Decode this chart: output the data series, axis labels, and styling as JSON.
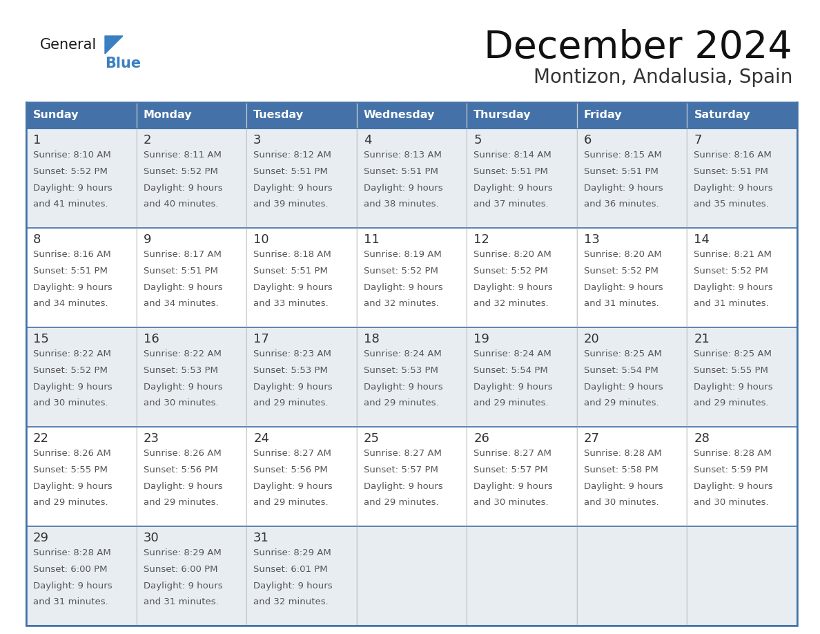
{
  "title": "December 2024",
  "subtitle": "Montizon, Andalusia, Spain",
  "header_color": "#4472a8",
  "header_text_color": "#ffffff",
  "day_names": [
    "Sunday",
    "Monday",
    "Tuesday",
    "Wednesday",
    "Thursday",
    "Friday",
    "Saturday"
  ],
  "cell_bg_white": "#ffffff",
  "cell_bg_gray": "#e8edf2",
  "border_color": "#4472a8",
  "day_num_color": "#333333",
  "text_color": "#555555",
  "days": [
    {
      "day": 1,
      "col": 0,
      "row": 0,
      "sunrise": "8:10 AM",
      "sunset": "5:52 PM",
      "daylight_line1": "9 hours",
      "daylight_line2": "and 41 minutes."
    },
    {
      "day": 2,
      "col": 1,
      "row": 0,
      "sunrise": "8:11 AM",
      "sunset": "5:52 PM",
      "daylight_line1": "9 hours",
      "daylight_line2": "and 40 minutes."
    },
    {
      "day": 3,
      "col": 2,
      "row": 0,
      "sunrise": "8:12 AM",
      "sunset": "5:51 PM",
      "daylight_line1": "9 hours",
      "daylight_line2": "and 39 minutes."
    },
    {
      "day": 4,
      "col": 3,
      "row": 0,
      "sunrise": "8:13 AM",
      "sunset": "5:51 PM",
      "daylight_line1": "9 hours",
      "daylight_line2": "and 38 minutes."
    },
    {
      "day": 5,
      "col": 4,
      "row": 0,
      "sunrise": "8:14 AM",
      "sunset": "5:51 PM",
      "daylight_line1": "9 hours",
      "daylight_line2": "and 37 minutes."
    },
    {
      "day": 6,
      "col": 5,
      "row": 0,
      "sunrise": "8:15 AM",
      "sunset": "5:51 PM",
      "daylight_line1": "9 hours",
      "daylight_line2": "and 36 minutes."
    },
    {
      "day": 7,
      "col": 6,
      "row": 0,
      "sunrise": "8:16 AM",
      "sunset": "5:51 PM",
      "daylight_line1": "9 hours",
      "daylight_line2": "and 35 minutes."
    },
    {
      "day": 8,
      "col": 0,
      "row": 1,
      "sunrise": "8:16 AM",
      "sunset": "5:51 PM",
      "daylight_line1": "9 hours",
      "daylight_line2": "and 34 minutes."
    },
    {
      "day": 9,
      "col": 1,
      "row": 1,
      "sunrise": "8:17 AM",
      "sunset": "5:51 PM",
      "daylight_line1": "9 hours",
      "daylight_line2": "and 34 minutes."
    },
    {
      "day": 10,
      "col": 2,
      "row": 1,
      "sunrise": "8:18 AM",
      "sunset": "5:51 PM",
      "daylight_line1": "9 hours",
      "daylight_line2": "and 33 minutes."
    },
    {
      "day": 11,
      "col": 3,
      "row": 1,
      "sunrise": "8:19 AM",
      "sunset": "5:52 PM",
      "daylight_line1": "9 hours",
      "daylight_line2": "and 32 minutes."
    },
    {
      "day": 12,
      "col": 4,
      "row": 1,
      "sunrise": "8:20 AM",
      "sunset": "5:52 PM",
      "daylight_line1": "9 hours",
      "daylight_line2": "and 32 minutes."
    },
    {
      "day": 13,
      "col": 5,
      "row": 1,
      "sunrise": "8:20 AM",
      "sunset": "5:52 PM",
      "daylight_line1": "9 hours",
      "daylight_line2": "and 31 minutes."
    },
    {
      "day": 14,
      "col": 6,
      "row": 1,
      "sunrise": "8:21 AM",
      "sunset": "5:52 PM",
      "daylight_line1": "9 hours",
      "daylight_line2": "and 31 minutes."
    },
    {
      "day": 15,
      "col": 0,
      "row": 2,
      "sunrise": "8:22 AM",
      "sunset": "5:52 PM",
      "daylight_line1": "9 hours",
      "daylight_line2": "and 30 minutes."
    },
    {
      "day": 16,
      "col": 1,
      "row": 2,
      "sunrise": "8:22 AM",
      "sunset": "5:53 PM",
      "daylight_line1": "9 hours",
      "daylight_line2": "and 30 minutes."
    },
    {
      "day": 17,
      "col": 2,
      "row": 2,
      "sunrise": "8:23 AM",
      "sunset": "5:53 PM",
      "daylight_line1": "9 hours",
      "daylight_line2": "and 29 minutes."
    },
    {
      "day": 18,
      "col": 3,
      "row": 2,
      "sunrise": "8:24 AM",
      "sunset": "5:53 PM",
      "daylight_line1": "9 hours",
      "daylight_line2": "and 29 minutes."
    },
    {
      "day": 19,
      "col": 4,
      "row": 2,
      "sunrise": "8:24 AM",
      "sunset": "5:54 PM",
      "daylight_line1": "9 hours",
      "daylight_line2": "and 29 minutes."
    },
    {
      "day": 20,
      "col": 5,
      "row": 2,
      "sunrise": "8:25 AM",
      "sunset": "5:54 PM",
      "daylight_line1": "9 hours",
      "daylight_line2": "and 29 minutes."
    },
    {
      "day": 21,
      "col": 6,
      "row": 2,
      "sunrise": "8:25 AM",
      "sunset": "5:55 PM",
      "daylight_line1": "9 hours",
      "daylight_line2": "and 29 minutes."
    },
    {
      "day": 22,
      "col": 0,
      "row": 3,
      "sunrise": "8:26 AM",
      "sunset": "5:55 PM",
      "daylight_line1": "9 hours",
      "daylight_line2": "and 29 minutes."
    },
    {
      "day": 23,
      "col": 1,
      "row": 3,
      "sunrise": "8:26 AM",
      "sunset": "5:56 PM",
      "daylight_line1": "9 hours",
      "daylight_line2": "and 29 minutes."
    },
    {
      "day": 24,
      "col": 2,
      "row": 3,
      "sunrise": "8:27 AM",
      "sunset": "5:56 PM",
      "daylight_line1": "9 hours",
      "daylight_line2": "and 29 minutes."
    },
    {
      "day": 25,
      "col": 3,
      "row": 3,
      "sunrise": "8:27 AM",
      "sunset": "5:57 PM",
      "daylight_line1": "9 hours",
      "daylight_line2": "and 29 minutes."
    },
    {
      "day": 26,
      "col": 4,
      "row": 3,
      "sunrise": "8:27 AM",
      "sunset": "5:57 PM",
      "daylight_line1": "9 hours",
      "daylight_line2": "and 30 minutes."
    },
    {
      "day": 27,
      "col": 5,
      "row": 3,
      "sunrise": "8:28 AM",
      "sunset": "5:58 PM",
      "daylight_line1": "9 hours",
      "daylight_line2": "and 30 minutes."
    },
    {
      "day": 28,
      "col": 6,
      "row": 3,
      "sunrise": "8:28 AM",
      "sunset": "5:59 PM",
      "daylight_line1": "9 hours",
      "daylight_line2": "and 30 minutes."
    },
    {
      "day": 29,
      "col": 0,
      "row": 4,
      "sunrise": "8:28 AM",
      "sunset": "6:00 PM",
      "daylight_line1": "9 hours",
      "daylight_line2": "and 31 minutes."
    },
    {
      "day": 30,
      "col": 1,
      "row": 4,
      "sunrise": "8:29 AM",
      "sunset": "6:00 PM",
      "daylight_line1": "9 hours",
      "daylight_line2": "and 31 minutes."
    },
    {
      "day": 31,
      "col": 2,
      "row": 4,
      "sunrise": "8:29 AM",
      "sunset": "6:01 PM",
      "daylight_line1": "9 hours",
      "daylight_line2": "and 32 minutes."
    }
  ],
  "num_weeks": 5
}
